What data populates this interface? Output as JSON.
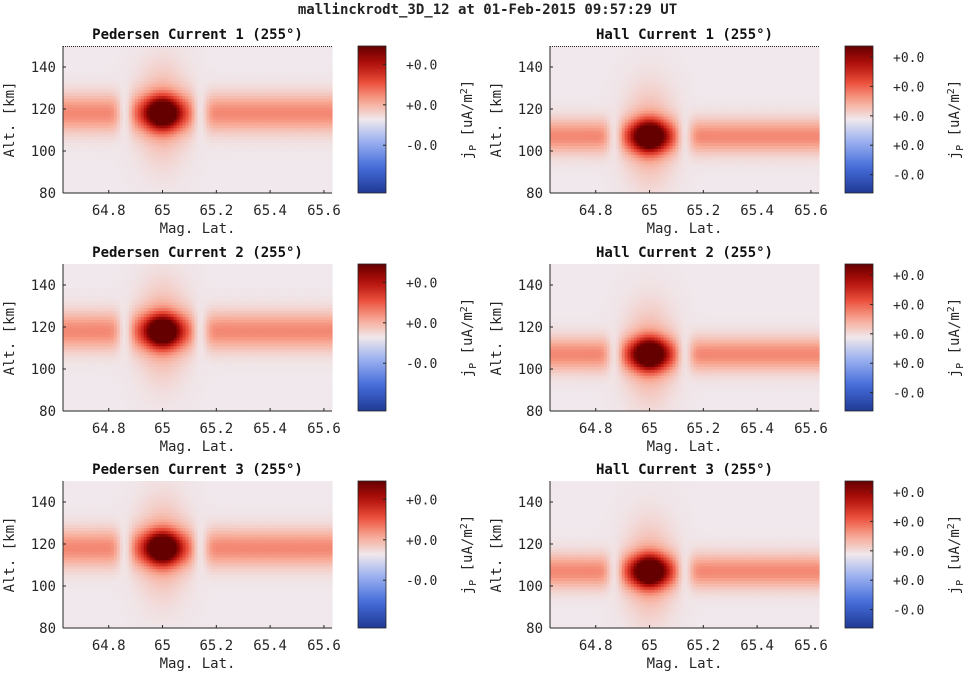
{
  "figure_title": "mallinckrodt_3D_12 at 01-Feb-2015 09:57:29 UT",
  "chart_data": [
    {
      "type": "heatmap",
      "title": "Pedersen Current 1 (255°)",
      "xlabel": "Mag. Lat.",
      "ylabel": "Alt. [km]",
      "xlim": [
        64.63,
        65.63
      ],
      "ylim": [
        80,
        150
      ],
      "xticks": [
        64.8,
        65,
        65.2,
        65.4,
        65.6
      ],
      "xtick_labels": [
        "64.8",
        "65",
        "65.2",
        "65.4",
        "65.6"
      ],
      "yticks": [
        80,
        100,
        120,
        140
      ],
      "ytick_labels": [
        "80",
        "100",
        "120",
        "140"
      ],
      "colorbar": {
        "label": "j_P [uA/m^2]",
        "tick_labels": [
          "+0.0",
          "+0.0",
          "-0.0"
        ],
        "ticks": [
          0.75,
          0.2,
          -0.35
        ],
        "clim": [
          -1,
          1
        ]
      },
      "features": {
        "band_altitude_km": 118,
        "band_halfwidth_km": 9,
        "blob_center_lat": 65.0,
        "blob_center_alt_km": 118,
        "gap_lats": [
          64.86,
          65.14
        ]
      }
    },
    {
      "type": "heatmap",
      "title": "Hall Current 1 (255°)",
      "xlabel": "Mag. Lat.",
      "ylabel": "Alt. [km]",
      "xlim": [
        64.63,
        65.63
      ],
      "ylim": [
        80,
        150
      ],
      "xticks": [
        64.8,
        65,
        65.2,
        65.4,
        65.6
      ],
      "xtick_labels": [
        "64.8",
        "65",
        "65.2",
        "65.4",
        "65.6"
      ],
      "yticks": [
        80,
        100,
        120,
        140
      ],
      "ytick_labels": [
        "80",
        "100",
        "120",
        "140"
      ],
      "colorbar": {
        "label": "j_P [uA/m^2]",
        "tick_labels": [
          "+0.0",
          "+0.0",
          "+0.0",
          "+0.0",
          "-0.0"
        ],
        "ticks": [
          0.85,
          0.45,
          0.05,
          -0.35,
          -0.75
        ],
        "clim": [
          -1,
          1
        ]
      },
      "features": {
        "band_altitude_km": 107,
        "band_halfwidth_km": 8,
        "blob_center_lat": 65.0,
        "blob_center_alt_km": 107,
        "gap_lats": [
          64.87,
          65.13
        ]
      }
    },
    {
      "type": "heatmap",
      "title": "Pedersen Current 2 (255°)",
      "xlabel": "Mag. Lat.",
      "ylabel": "Alt. [km]",
      "xlim": [
        64.63,
        65.63
      ],
      "ylim": [
        80,
        150
      ],
      "xticks": [
        64.8,
        65,
        65.2,
        65.4,
        65.6
      ],
      "xtick_labels": [
        "64.8",
        "65",
        "65.2",
        "65.4",
        "65.6"
      ],
      "yticks": [
        80,
        100,
        120,
        140
      ],
      "ytick_labels": [
        "80",
        "100",
        "120",
        "140"
      ],
      "colorbar": {
        "label": "j_P [uA/m^2]",
        "tick_labels": [
          "+0.0",
          "+0.0",
          "-0.0"
        ],
        "ticks": [
          0.75,
          0.2,
          -0.35
        ],
        "clim": [
          -1,
          1
        ]
      },
      "features": {
        "band_altitude_km": 118,
        "band_halfwidth_km": 9,
        "blob_center_lat": 65.0,
        "blob_center_alt_km": 118,
        "gap_lats": [
          64.86,
          65.14
        ]
      }
    },
    {
      "type": "heatmap",
      "title": "Hall Current 2 (255°)",
      "xlabel": "Mag. Lat.",
      "ylabel": "Alt. [km]",
      "xlim": [
        64.63,
        65.63
      ],
      "ylim": [
        80,
        150
      ],
      "xticks": [
        64.8,
        65,
        65.2,
        65.4,
        65.6
      ],
      "xtick_labels": [
        "64.8",
        "65",
        "65.2",
        "65.4",
        "65.6"
      ],
      "yticks": [
        80,
        100,
        120,
        140
      ],
      "ytick_labels": [
        "80",
        "100",
        "120",
        "140"
      ],
      "colorbar": {
        "label": "j_P [uA/m^2]",
        "tick_labels": [
          "+0.0",
          "+0.0",
          "+0.0",
          "+0.0",
          "-0.0"
        ],
        "ticks": [
          0.85,
          0.45,
          0.05,
          -0.35,
          -0.75
        ],
        "clim": [
          -1,
          1
        ]
      },
      "features": {
        "band_altitude_km": 107,
        "band_halfwidth_km": 8,
        "blob_center_lat": 65.0,
        "blob_center_alt_km": 107,
        "gap_lats": [
          64.87,
          65.13
        ]
      }
    },
    {
      "type": "heatmap",
      "title": "Pedersen Current 3 (255°)",
      "xlabel": "Mag. Lat.",
      "ylabel": "Alt. [km]",
      "xlim": [
        64.63,
        65.63
      ],
      "ylim": [
        80,
        150
      ],
      "xticks": [
        64.8,
        65,
        65.2,
        65.4,
        65.6
      ],
      "xtick_labels": [
        "64.8",
        "65",
        "65.2",
        "65.4",
        "65.6"
      ],
      "yticks": [
        80,
        100,
        120,
        140
      ],
      "ytick_labels": [
        "80",
        "100",
        "120",
        "140"
      ],
      "colorbar": {
        "label": "j_P [uA/m^2]",
        "tick_labels": [
          "+0.0",
          "+0.0",
          "-0.0"
        ],
        "ticks": [
          0.75,
          0.2,
          -0.35
        ],
        "clim": [
          -1,
          1
        ]
      },
      "features": {
        "band_altitude_km": 118,
        "band_halfwidth_km": 9,
        "blob_center_lat": 65.0,
        "blob_center_alt_km": 118,
        "gap_lats": [
          64.86,
          65.14
        ]
      }
    },
    {
      "type": "heatmap",
      "title": "Hall Current 3 (255°)",
      "xlabel": "Mag. Lat.",
      "ylabel": "Alt. [km]",
      "xlim": [
        64.63,
        65.63
      ],
      "ylim": [
        80,
        150
      ],
      "xticks": [
        64.8,
        65,
        65.2,
        65.4,
        65.6
      ],
      "xtick_labels": [
        "64.8",
        "65",
        "65.2",
        "65.4",
        "65.6"
      ],
      "yticks": [
        80,
        100,
        120,
        140
      ],
      "ytick_labels": [
        "80",
        "100",
        "120",
        "140"
      ],
      "colorbar": {
        "label": "j_P [uA/m^2]",
        "tick_labels": [
          "+0.0",
          "+0.0",
          "+0.0",
          "+0.0",
          "-0.0"
        ],
        "ticks": [
          0.85,
          0.45,
          0.05,
          -0.35,
          -0.75
        ],
        "clim": [
          -1,
          1
        ]
      },
      "features": {
        "band_altitude_km": 107,
        "band_halfwidth_km": 8,
        "blob_center_lat": 65.0,
        "blob_center_alt_km": 107,
        "gap_lats": [
          64.87,
          65.13
        ]
      }
    }
  ],
  "colors": {
    "cmap_low": "#1f3a93",
    "cmap_mid": "#f0e8ec",
    "cmap_high": "#6b0000",
    "axis": "#262626"
  }
}
